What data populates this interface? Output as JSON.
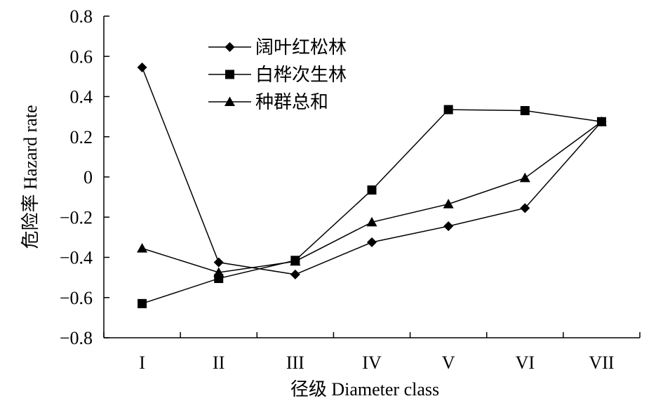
{
  "chart_data": {
    "type": "line",
    "xlabel": "径级 Diameter class",
    "ylabel": "危险率 Hazard rate",
    "categories": [
      "I",
      "II",
      "III",
      "IV",
      "V",
      "VI",
      "VII"
    ],
    "ylim": [
      -0.8,
      0.8
    ],
    "yticks": [
      "0.8",
      "0.6",
      "0.4",
      "0.2",
      "0",
      "−0.2",
      "−0.4",
      "−0.6",
      "−0.8"
    ],
    "yticks_values": [
      0.8,
      0.6,
      0.4,
      0.2,
      0,
      -0.2,
      -0.4,
      -0.6,
      -0.8
    ],
    "legend_position": "top-left",
    "grid": false,
    "series": [
      {
        "name": "阔叶红松林",
        "marker": "diamond",
        "values": [
          0.545,
          -0.425,
          -0.485,
          -0.325,
          -0.245,
          -0.155,
          0.275
        ]
      },
      {
        "name": "白桦次生林",
        "marker": "square",
        "values": [
          -0.63,
          -0.505,
          -0.415,
          -0.065,
          0.335,
          0.33,
          0.275
        ]
      },
      {
        "name": "种群总和",
        "marker": "triangle",
        "values": [
          -0.355,
          -0.475,
          -0.42,
          -0.225,
          -0.135,
          -0.005,
          0.275
        ]
      }
    ]
  }
}
